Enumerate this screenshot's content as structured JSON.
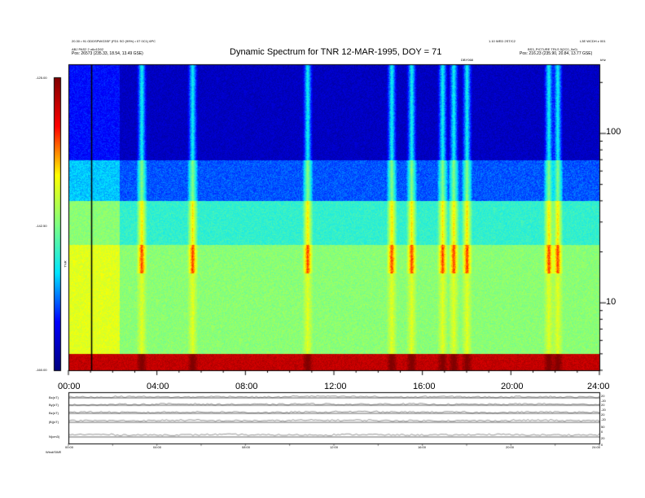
{
  "header": {
    "title": "Dynamic Spectrum for TNR 12-MAR-1995, DOY = 71",
    "left_line1": "20.30 • 91 GDDSPWG3SF (FD1 SO (99%) • 07 0C1) 6PC",
    "left_line2": "ABJ PAS2 2 o6o1D02",
    "left_line3": "Pos:  26573 (235.33, 18.54, 13.49 GSE)",
    "right_line1": "1.10 WED 2ST/C2",
    "right_line2": "L3E WCDH z 001",
    "right_line3": "BS3_PICTURE TRLS 5(2C0_0o0)",
    "right_line4": "Pos:  216.23 (235.90, 20.84, 13.77 GSE)",
    "top_marker": "DBY068",
    "hz_label": "kHz"
  },
  "colorbar": {
    "ticks": [
      "-125.00",
      "-142.50",
      "-160.00"
    ],
    "label": "TNR"
  },
  "chart_data": [
    {
      "type": "heatmap",
      "title": "Dynamic Spectrum for TNR 12-MAR-1995, DOY = 71",
      "x_tick_labels": [
        "00:00",
        "04:00",
        "08:00",
        "12:00",
        "16:00",
        "20:00",
        "24:00"
      ],
      "x_range_hours": [
        0,
        24
      ],
      "y_scale": "log",
      "y_unit": "kHz",
      "y_tick_labels": [
        "100",
        "10"
      ],
      "y_range_khz": [
        4,
        256
      ],
      "z_range": [
        -160.0,
        -125.0
      ],
      "colormap": [
        "#000080",
        "#0000ff",
        "#00e5ff",
        "#80ff80",
        "#ffff00",
        "#ff0000",
        "#800000"
      ],
      "vertical_marker_hour": 1.05,
      "bands": [
        {
          "from_khz": 4.0,
          "to_khz": 5.0,
          "level_db": -128.0
        },
        {
          "from_khz": 5.0,
          "to_khz": 22.0,
          "level_db": -142.0
        },
        {
          "from_khz": 22.0,
          "to_khz": 40.0,
          "level_db": -146.0
        },
        {
          "from_khz": 40.0,
          "to_khz": 70.0,
          "level_db": -152.0
        },
        {
          "from_khz": 70.0,
          "to_khz": 256.0,
          "level_db": -157.0
        }
      ]
    },
    {
      "type": "line",
      "title": "",
      "x_tick_labels": [
        "00:00",
        "04:00",
        "08:00",
        "12:00",
        "16:00",
        "20:00",
        "24:00"
      ],
      "series": [
        {
          "name": "Bx(nT)",
          "values": [
            2,
            3,
            2,
            3,
            2,
            4,
            3,
            2,
            3,
            2,
            3,
            2,
            3
          ]
        },
        {
          "name": "By(nT)",
          "values": [
            1,
            2,
            3,
            2,
            2,
            3,
            2,
            3,
            2,
            2,
            3,
            2,
            2
          ]
        },
        {
          "name": "Bz(nT)",
          "values": [
            3,
            2,
            3,
            3,
            2,
            3,
            4,
            3,
            3,
            2,
            3,
            3,
            2
          ]
        },
        {
          "name": "|B|(nT)",
          "values": [
            4,
            4,
            5,
            4,
            4,
            5,
            5,
            4,
            4,
            4,
            5,
            4,
            4
          ]
        },
        {
          "name": "N(cm3)",
          "values": [
            6,
            5,
            5,
            6,
            5,
            5,
            6,
            5,
            5,
            6,
            5,
            5,
            6
          ]
        }
      ],
      "left_labels": [
        "Bx(nT)",
        "By(nT)",
        "Bz(nT)",
        "|B|(nT)",
        "N(cm3)",
        "Vsw"
      ],
      "right_labels": [
        "20",
        "-20",
        "20",
        "-20",
        "20",
        "-20",
        "50",
        "0",
        "20",
        "0"
      ],
      "footer_left": "Wind/SWE"
    }
  ]
}
